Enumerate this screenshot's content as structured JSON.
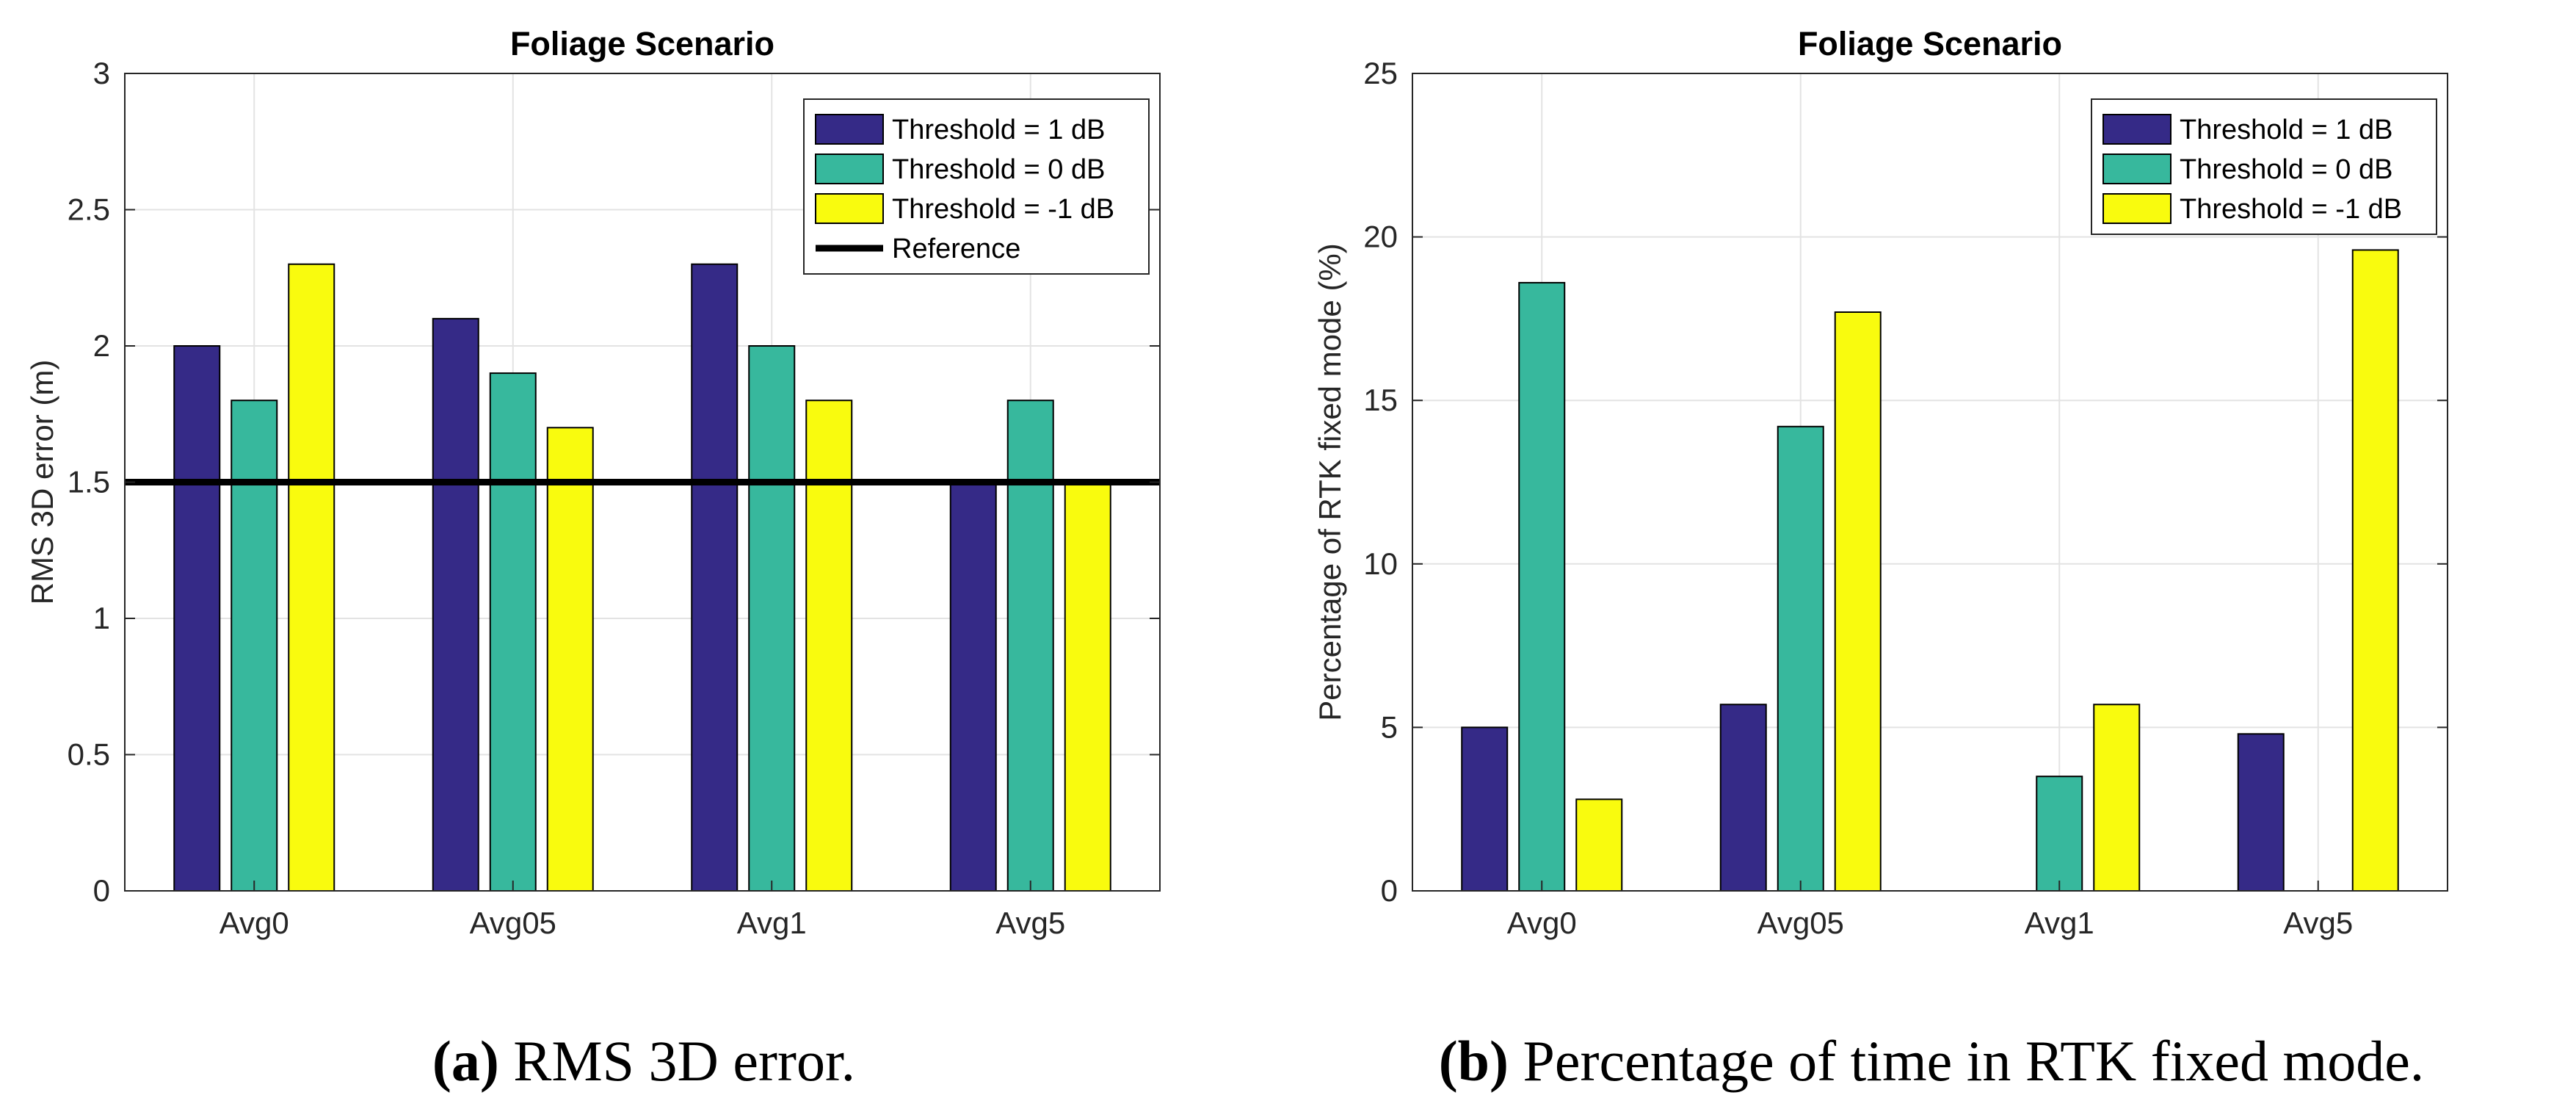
{
  "chart_data": [
    {
      "type": "bar",
      "title": "Foliage Scenario",
      "xlabel": "",
      "ylabel": "RMS 3D error (m)",
      "ylim": [
        0,
        3
      ],
      "yticks": [
        0,
        0.5,
        1,
        1.5,
        2,
        2.5,
        3
      ],
      "ytick_labels": [
        "0",
        "0.5",
        "1",
        "1.5",
        "2",
        "2.5",
        "3"
      ],
      "grid": true,
      "legend_position": "top-right",
      "categories": [
        "Avg0",
        "Avg05",
        "Avg1",
        "Avg5"
      ],
      "series": [
        {
          "name": "Threshold = 1 dB",
          "color": "#352a87",
          "values": [
            2.0,
            2.1,
            2.3,
            1.5
          ]
        },
        {
          "name": "Threshold = 0 dB",
          "color": "#37b89d",
          "values": [
            1.8,
            1.9,
            2.0,
            1.8
          ]
        },
        {
          "name": "Threshold = -1 dB",
          "color": "#f9fb0e",
          "values": [
            2.3,
            1.7,
            1.8,
            1.5
          ]
        }
      ],
      "reference": {
        "name": "Reference",
        "value": 1.5,
        "color": "#000000"
      },
      "caption_letter": "(a)",
      "caption_text": " RMS 3D error."
    },
    {
      "type": "bar",
      "title": "Foliage Scenario",
      "xlabel": "",
      "ylabel": "Percentage of RTK fixed mode (%)",
      "ylim": [
        0,
        25
      ],
      "yticks": [
        0,
        5,
        10,
        15,
        20,
        25
      ],
      "ytick_labels": [
        "0",
        "5",
        "10",
        "15",
        "20",
        "25"
      ],
      "grid": true,
      "legend_position": "top-right",
      "categories": [
        "Avg0",
        "Avg05",
        "Avg1",
        "Avg5"
      ],
      "series": [
        {
          "name": "Threshold = 1 dB",
          "color": "#352a87",
          "values": [
            5.0,
            5.7,
            0.0,
            4.8
          ]
        },
        {
          "name": "Threshold = 0 dB",
          "color": "#37b89d",
          "values": [
            18.6,
            14.2,
            3.5,
            0.0
          ]
        },
        {
          "name": "Threshold = -1 dB",
          "color": "#f9fb0e",
          "values": [
            2.8,
            17.7,
            5.7,
            19.6
          ]
        }
      ],
      "caption_letter": "(b)",
      "caption_text": " Percentage of time in RTK fixed mode."
    }
  ]
}
